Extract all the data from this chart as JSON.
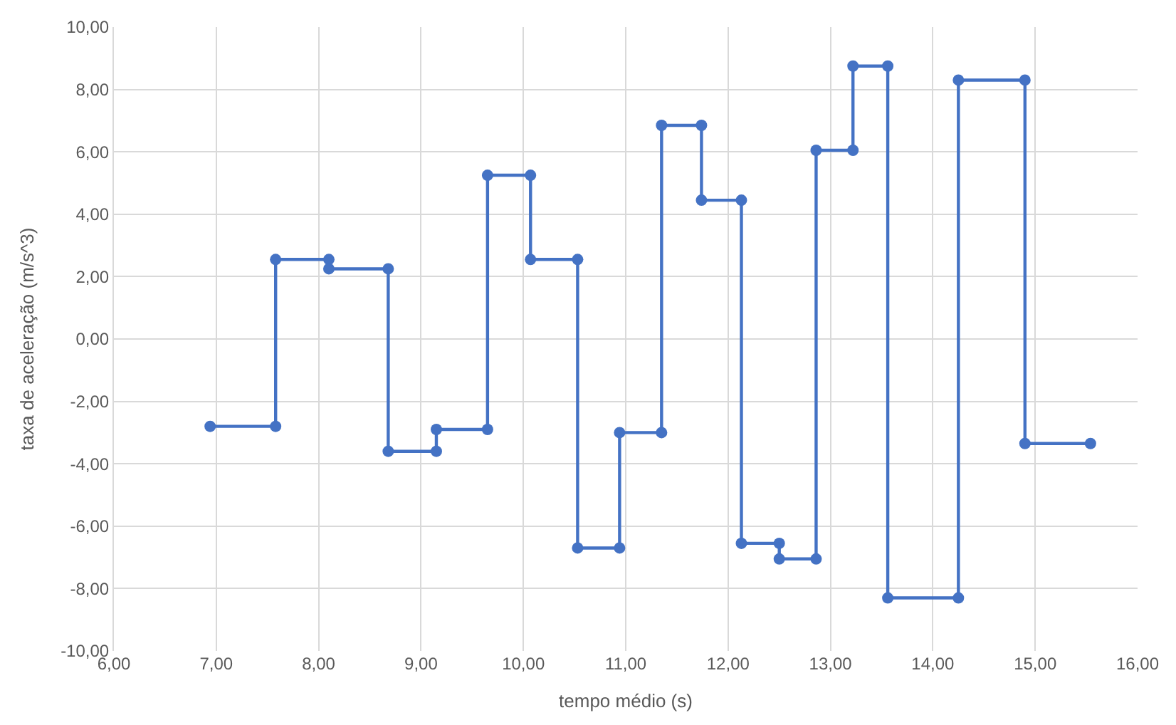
{
  "chart_data": {
    "type": "line",
    "xlabel": "tempo médio (s)",
    "ylabel": "taxa de aceleração (m/s^3)",
    "series": [
      {
        "color": "#4472c4",
        "x": [
          6.94,
          7.58,
          7.58,
          8.1,
          8.1,
          8.68,
          8.68,
          9.15,
          9.15,
          9.65,
          9.65,
          10.07,
          10.07,
          10.53,
          10.53,
          10.94,
          10.94,
          11.35,
          11.35,
          11.74,
          11.74,
          12.13,
          12.13,
          12.5,
          12.5,
          12.86,
          12.86,
          13.22,
          13.22,
          13.56,
          13.56,
          14.25,
          14.25,
          14.9,
          14.9,
          15.54
        ],
        "values": [
          -2.8,
          -2.8,
          2.55,
          2.55,
          2.25,
          2.25,
          -3.6,
          -3.6,
          -2.9,
          -2.9,
          5.25,
          5.25,
          2.55,
          2.55,
          -6.7,
          -6.7,
          -3.0,
          -3.0,
          6.85,
          6.85,
          4.45,
          4.45,
          -6.55,
          -6.55,
          -7.05,
          -7.05,
          6.05,
          6.05,
          8.75,
          8.75,
          -8.3,
          -8.3,
          8.3,
          8.3,
          -3.35,
          -3.35
        ]
      }
    ],
    "xlim": [
      6,
      16
    ],
    "ylim": [
      -10,
      10
    ],
    "xticks": [
      {
        "value": 6,
        "label": "6,00"
      },
      {
        "value": 7,
        "label": "7,00"
      },
      {
        "value": 8,
        "label": "8,00"
      },
      {
        "value": 9,
        "label": "9,00"
      },
      {
        "value": 10,
        "label": "10,00"
      },
      {
        "value": 11,
        "label": "11,00"
      },
      {
        "value": 12,
        "label": "12,00"
      },
      {
        "value": 13,
        "label": "13,00"
      },
      {
        "value": 14,
        "label": "14,00"
      },
      {
        "value": 15,
        "label": "15,00"
      },
      {
        "value": 16,
        "label": "16,00"
      }
    ],
    "yticks": [
      {
        "value": -10,
        "label": "-10,00"
      },
      {
        "value": -8,
        "label": "-8,00"
      },
      {
        "value": -6,
        "label": "-6,00"
      },
      {
        "value": -4,
        "label": "-4,00"
      },
      {
        "value": -2,
        "label": "-2,00"
      },
      {
        "value": 0,
        "label": "0,00"
      },
      {
        "value": 2,
        "label": "2,00"
      },
      {
        "value": 4,
        "label": "4,00"
      },
      {
        "value": 6,
        "label": "6,00"
      },
      {
        "value": 8,
        "label": "8,00"
      },
      {
        "value": 10,
        "label": "10,00"
      }
    ],
    "grid": true,
    "marker": "circle",
    "line_style": "solid",
    "legend": false
  }
}
